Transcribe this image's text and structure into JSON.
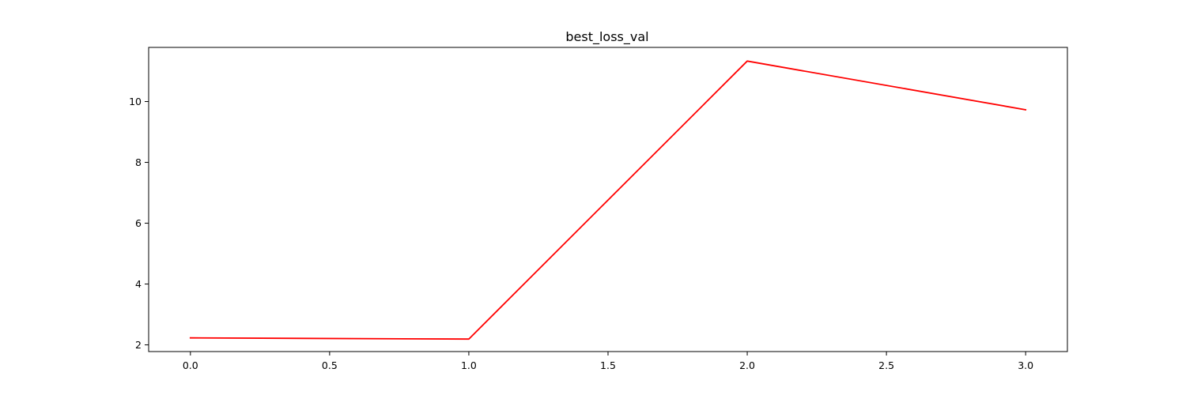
{
  "chart_data": {
    "type": "line",
    "title": "best_loss_val",
    "xlabel": "",
    "ylabel": "",
    "xlim": [
      -0.15,
      3.15
    ],
    "ylim": [
      1.78,
      11.78
    ],
    "xticks": [
      0.0,
      0.5,
      1.0,
      1.5,
      2.0,
      2.5,
      3.0
    ],
    "xtick_labels": [
      "0.0",
      "0.5",
      "1.0",
      "1.5",
      "2.0",
      "2.5",
      "3.0"
    ],
    "yticks": [
      2,
      4,
      6,
      8,
      10
    ],
    "ytick_labels": [
      "2",
      "4",
      "6",
      "8",
      "10"
    ],
    "grid": false,
    "series": [
      {
        "color": "#ff0000",
        "x": [
          0,
          1,
          2,
          3
        ],
        "y": [
          2.23,
          2.19,
          11.33,
          9.73
        ]
      }
    ]
  }
}
